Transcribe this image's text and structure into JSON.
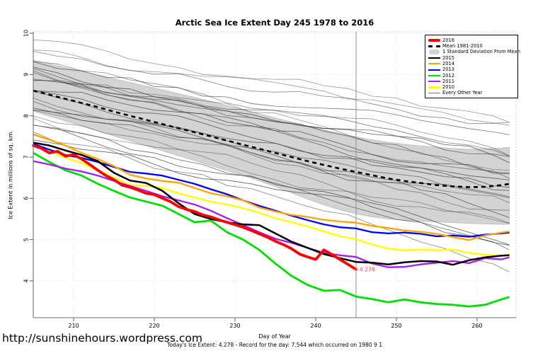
{
  "title": "Arctic Sea Ice Extent Day 245 1978 to 2016",
  "ylabel": "Ice Extent in millions of sq. km.",
  "xlabel": "Day of Year",
  "watermark": "http://sunshinehours.wordpress.com",
  "footer": "Today's Ice Extent: 4.278   - Record for the day: 7.544 which occurred on 1980 9 1",
  "annotation": {
    "text": "4.278",
    "day": 245,
    "value": 4.278,
    "color": "#fb4040"
  },
  "legend": [
    {
      "label": "2016",
      "swatch": "thick",
      "color": "#FF0000"
    },
    {
      "label": "Mean 1981-2010",
      "swatch": "dash",
      "color": "#000000"
    },
    {
      "label": "1 Standard Deviation From Mean",
      "swatch": "band",
      "color": "#D3D3D3"
    },
    {
      "label": "2015",
      "swatch": "line",
      "color": "#000000"
    },
    {
      "label": "2014",
      "swatch": "line",
      "color": "#FFA500"
    },
    {
      "label": "2013",
      "swatch": "line",
      "color": "#0000FF"
    },
    {
      "label": "2012",
      "swatch": "line",
      "color": "#00DD00"
    },
    {
      "label": "2011",
      "swatch": "line",
      "color": "#A020F0"
    },
    {
      "label": "2010",
      "swatch": "line",
      "color": "#FFFF00"
    },
    {
      "label": "Every Other Year",
      "swatch": "thin",
      "color": "#555555"
    }
  ],
  "chart_data": {
    "type": "line",
    "title": "Arctic Sea Ice Extent Day 245 1978 to 2016",
    "xlabel": "Day of Year",
    "ylabel": "Ice Extent in millions of sq. km.",
    "x_ticks": [
      210,
      220,
      230,
      240,
      250,
      260
    ],
    "y_ticks": [
      4,
      5,
      6,
      7,
      8,
      9,
      10
    ],
    "xlim": [
      205,
      264.8
    ],
    "ylim": [
      3.1,
      10.03
    ],
    "grid": true,
    "legend_position": "top-right",
    "vline_day": 245,
    "days": [
      205,
      207,
      209,
      211,
      213,
      215,
      217,
      219,
      221,
      223,
      225,
      227,
      229,
      231,
      233,
      235,
      237,
      239,
      241,
      243,
      245,
      247,
      249,
      251,
      253,
      255,
      257,
      259,
      261,
      263,
      264
    ],
    "band": {
      "label": "1 Standard Deviation From Mean",
      "fill": "#D3D3D3",
      "upper": [
        9.35,
        9.26,
        9.17,
        9.08,
        8.99,
        8.9,
        8.81,
        8.72,
        8.63,
        8.54,
        8.45,
        8.35,
        8.25,
        8.15,
        8.05,
        7.95,
        7.85,
        7.75,
        7.66,
        7.57,
        7.49,
        7.42,
        7.36,
        7.31,
        7.27,
        7.24,
        7.21,
        7.19,
        7.2,
        7.22,
        7.24
      ],
      "lower": [
        8.11,
        7.99,
        7.87,
        7.75,
        7.63,
        7.51,
        7.39,
        7.27,
        7.15,
        7.03,
        6.91,
        6.79,
        6.67,
        6.55,
        6.42,
        6.28,
        6.13,
        5.98,
        5.84,
        5.72,
        5.62,
        5.55,
        5.5,
        5.47,
        5.45,
        5.43,
        5.41,
        5.39,
        5.38,
        5.37,
        5.37
      ]
    },
    "mean": {
      "label": "Mean 1981-2010",
      "color": "#000000",
      "values": [
        8.61,
        8.51,
        8.41,
        8.31,
        8.21,
        8.1,
        8.0,
        7.9,
        7.8,
        7.7,
        7.6,
        7.5,
        7.4,
        7.3,
        7.2,
        7.1,
        7.0,
        6.9,
        6.81,
        6.72,
        6.64,
        6.56,
        6.48,
        6.42,
        6.37,
        6.32,
        6.29,
        6.27,
        6.28,
        6.32,
        6.35
      ]
    },
    "series": [
      {
        "name": "2010",
        "color": "#FFFF00",
        "width": 2.3,
        "values": [
          7.32,
          7.15,
          6.98,
          6.85,
          6.68,
          6.5,
          6.32,
          6.3,
          6.25,
          6.12,
          6.02,
          5.92,
          5.85,
          5.76,
          5.65,
          5.52,
          5.42,
          5.32,
          5.2,
          5.08,
          5.01,
          4.88,
          4.78,
          4.74,
          4.76,
          4.74,
          4.76,
          4.68,
          4.63,
          4.61,
          4.65
        ]
      },
      {
        "name": "2012",
        "color": "#00DD00",
        "width": 2.8,
        "values": [
          7.1,
          6.88,
          6.68,
          6.55,
          6.35,
          6.18,
          6.02,
          5.92,
          5.82,
          5.62,
          5.42,
          5.46,
          5.18,
          5.0,
          4.75,
          4.42,
          4.12,
          3.9,
          3.76,
          3.78,
          3.62,
          3.56,
          3.48,
          3.55,
          3.48,
          3.44,
          3.42,
          3.38,
          3.42,
          3.55,
          3.61
        ]
      },
      {
        "name": "2011",
        "color": "#A020F0",
        "width": 2.3,
        "values": [
          6.9,
          6.82,
          6.72,
          6.65,
          6.55,
          6.42,
          6.3,
          6.18,
          6.05,
          5.95,
          5.85,
          5.7,
          5.52,
          5.35,
          5.18,
          5.02,
          4.92,
          4.8,
          4.68,
          4.62,
          4.58,
          4.42,
          4.33,
          4.34,
          4.4,
          4.44,
          4.48,
          4.43,
          4.55,
          4.52,
          4.57
        ]
      },
      {
        "name": "2013",
        "color": "#0000FF",
        "width": 2.3,
        "values": [
          7.32,
          7.18,
          7.05,
          6.98,
          6.88,
          6.76,
          6.64,
          6.6,
          6.55,
          6.45,
          6.35,
          6.22,
          6.1,
          5.95,
          5.82,
          5.7,
          5.58,
          5.47,
          5.37,
          5.3,
          5.27,
          5.18,
          5.15,
          5.17,
          5.14,
          5.08,
          5.1,
          5.07,
          5.12,
          5.15,
          5.17
        ]
      },
      {
        "name": "2014",
        "color": "#FFA500",
        "width": 2.3,
        "values": [
          7.55,
          7.42,
          7.28,
          7.1,
          6.95,
          6.78,
          6.57,
          6.48,
          6.42,
          6.38,
          6.25,
          6.12,
          6.05,
          5.95,
          5.78,
          5.68,
          5.6,
          5.55,
          5.48,
          5.44,
          5.41,
          5.33,
          5.28,
          5.22,
          5.19,
          5.14,
          5.06,
          4.99,
          5.1,
          5.17,
          5.2
        ]
      },
      {
        "name": "2015",
        "color": "#000000",
        "width": 2.5,
        "values": [
          7.35,
          7.28,
          7.16,
          7.05,
          6.9,
          6.62,
          6.43,
          6.37,
          6.18,
          5.88,
          5.62,
          5.5,
          5.42,
          5.37,
          5.35,
          5.15,
          4.95,
          4.8,
          4.65,
          4.55,
          4.46,
          4.44,
          4.4,
          4.45,
          4.48,
          4.47,
          4.39,
          4.5,
          4.57,
          4.61,
          4.62
        ]
      }
    ],
    "series_2016": {
      "name": "2016",
      "color": "#FF0000",
      "width": 3.8,
      "days": [
        205,
        206,
        207,
        208,
        209,
        210,
        211,
        212,
        213,
        214,
        215,
        216,
        217,
        218,
        219,
        220,
        221,
        222,
        223,
        224,
        225,
        226,
        227,
        228,
        229,
        230,
        231,
        232,
        233,
        234,
        235,
        236,
        237,
        238,
        239,
        240,
        241,
        242,
        243,
        244,
        245
      ],
      "values": [
        7.28,
        7.21,
        7.1,
        7.14,
        7.02,
        7.06,
        6.95,
        6.82,
        6.68,
        6.55,
        6.45,
        6.32,
        6.27,
        6.2,
        6.12,
        6.09,
        6.0,
        5.92,
        5.8,
        5.73,
        5.68,
        5.6,
        5.55,
        5.48,
        5.42,
        5.36,
        5.3,
        5.22,
        5.14,
        5.06,
        4.96,
        4.88,
        4.78,
        4.65,
        4.58,
        4.52,
        4.75,
        4.64,
        4.52,
        4.4,
        4.278
      ]
    },
    "background_years": {
      "label": "Every Other Year",
      "color": "#3a3a3a",
      "width": 0.8,
      "lines": [
        {
          "start": 9.75,
          "end": 7.85,
          "seed": 11
        },
        {
          "start": 9.62,
          "end": 7.55,
          "seed": 2
        },
        {
          "start": 9.5,
          "end": 7.6,
          "seed": 3
        },
        {
          "start": 9.42,
          "end": 7.25,
          "seed": 4
        },
        {
          "start": 9.35,
          "end": 7.3,
          "seed": 5
        },
        {
          "start": 9.28,
          "end": 7.0,
          "seed": 6
        },
        {
          "start": 9.2,
          "end": 6.85,
          "seed": 7
        },
        {
          "start": 9.12,
          "end": 7.1,
          "seed": 8
        },
        {
          "start": 9.05,
          "end": 6.7,
          "seed": 9
        },
        {
          "start": 8.95,
          "end": 6.6,
          "seed": 10
        },
        {
          "start": 8.88,
          "end": 6.85,
          "seed": 1
        },
        {
          "start": 8.8,
          "end": 6.45,
          "seed": 12
        },
        {
          "start": 8.72,
          "end": 6.55,
          "seed": 13
        },
        {
          "start": 8.65,
          "end": 6.3,
          "seed": 14
        },
        {
          "start": 8.55,
          "end": 6.1,
          "seed": 15
        },
        {
          "start": 8.45,
          "end": 6.25,
          "seed": 16
        },
        {
          "start": 8.38,
          "end": 5.95,
          "seed": 17
        },
        {
          "start": 8.28,
          "end": 5.8,
          "seed": 18
        },
        {
          "start": 8.18,
          "end": 5.65,
          "seed": 19
        },
        {
          "start": 8.08,
          "end": 5.55,
          "seed": 20
        },
        {
          "start": 7.98,
          "end": 5.45,
          "seed": 21
        },
        {
          "start": 7.9,
          "end": 5.15,
          "seed": 22
        },
        {
          "start": 7.8,
          "end": 4.85,
          "seed": 23
        },
        {
          "start": 7.7,
          "end": 4.6,
          "seed": 24
        },
        {
          "start": 7.62,
          "end": 4.3,
          "seed": 25
        },
        {
          "start": 7.5,
          "end": 4.9,
          "seed": 26
        }
      ]
    }
  }
}
